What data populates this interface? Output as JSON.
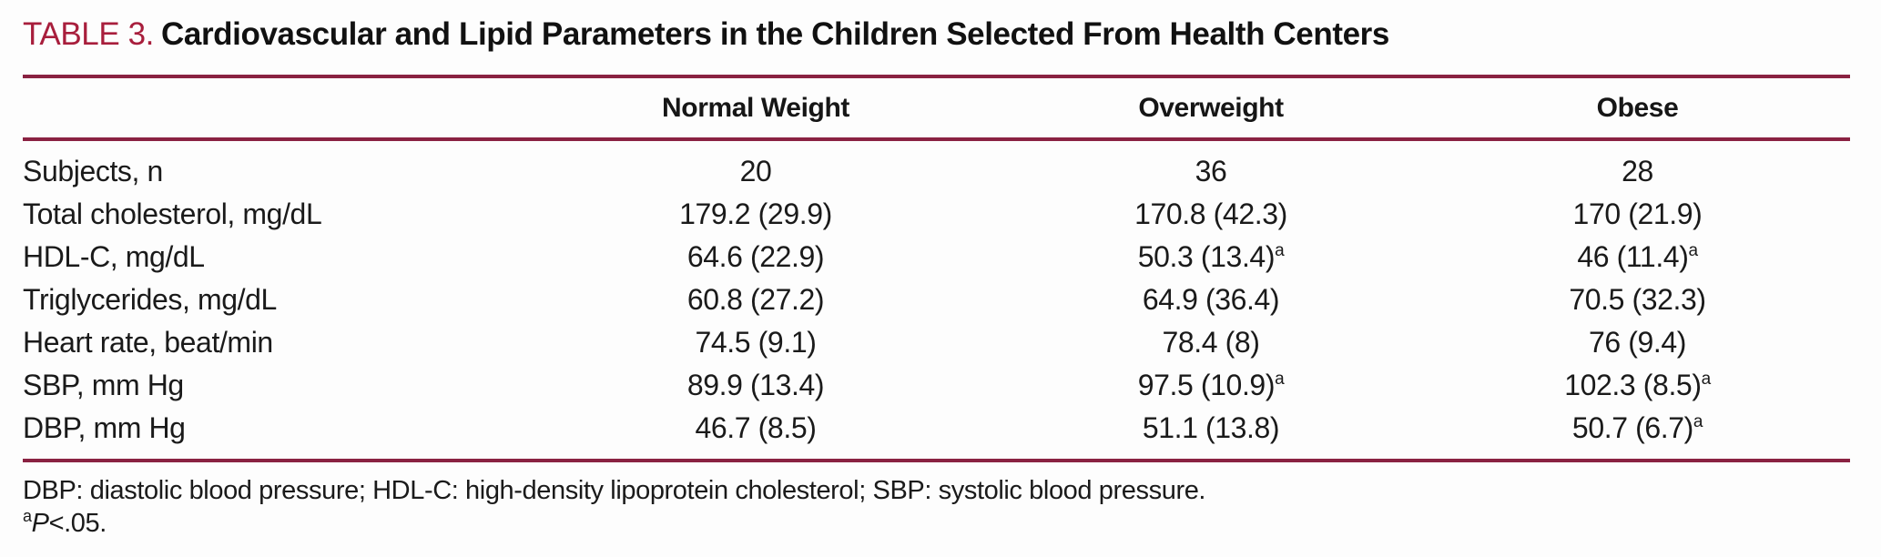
{
  "title": {
    "label": "TABLE 3.",
    "text": "Cardiovascular and Lipid Parameters in the Children Selected From Health Centers"
  },
  "colors": {
    "accent_red": "#a81e3c",
    "rule_maroon": "#8a2242",
    "text": "#1a1a1a",
    "background": "#fdfdfd"
  },
  "table": {
    "columns": [
      "",
      "Normal Weight",
      "Overweight",
      "Obese"
    ],
    "rows": [
      {
        "label": "Subjects, n",
        "values": [
          {
            "text": "20"
          },
          {
            "text": "36"
          },
          {
            "text": "28"
          }
        ]
      },
      {
        "label": "Total cholesterol, mg/dL",
        "values": [
          {
            "text": "179.2 (29.9)"
          },
          {
            "text": "170.8 (42.3)"
          },
          {
            "text": "170 (21.9)"
          }
        ]
      },
      {
        "label": "HDL-C, mg/dL",
        "values": [
          {
            "text": "64.6 (22.9)"
          },
          {
            "text": "50.3 (13.4)",
            "sup": "a"
          },
          {
            "text": "46 (11.4)",
            "sup": "a"
          }
        ]
      },
      {
        "label": "Triglycerides, mg/dL",
        "values": [
          {
            "text": "60.8 (27.2)"
          },
          {
            "text": "64.9 (36.4)"
          },
          {
            "text": "70.5 (32.3)"
          }
        ]
      },
      {
        "label": "Heart rate, beat/min",
        "values": [
          {
            "text": "74.5 (9.1)"
          },
          {
            "text": "78.4 (8)"
          },
          {
            "text": "76 (9.4)"
          }
        ]
      },
      {
        "label": "SBP, mm Hg",
        "values": [
          {
            "text": "89.9 (13.4)"
          },
          {
            "text": "97.5 (10.9)",
            "sup": "a"
          },
          {
            "text": "102.3 (8.5)",
            "sup": "a"
          }
        ]
      },
      {
        "label": "DBP, mm Hg",
        "values": [
          {
            "text": "46.7 (8.5)"
          },
          {
            "text": "51.1 (13.8)"
          },
          {
            "text": "50.7 (6.7)",
            "sup": "a"
          }
        ]
      }
    ]
  },
  "footnotes": {
    "abbreviations": "DBP: diastolic blood pressure; HDL-C: high-density lipoprotein cholesterol; SBP: systolic blood pressure.",
    "significance": {
      "sup": "a",
      "symbol": "P",
      "rest": "<.05."
    }
  }
}
